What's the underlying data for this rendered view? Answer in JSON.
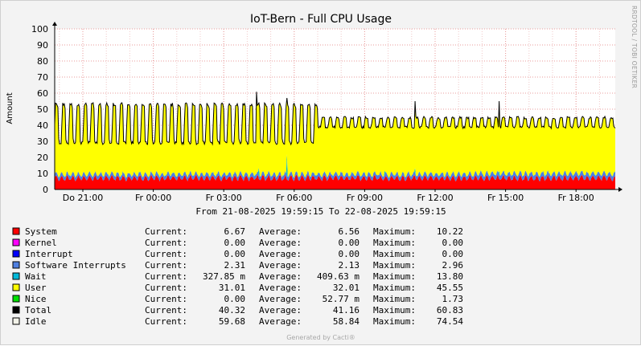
{
  "chart_data": {
    "type": "area",
    "title": "IoT-Bern - Full CPU Usage",
    "ylabel": "Amount",
    "watermark": "RRDTOOL / TOBI OETIKER",
    "ylim": [
      0,
      100
    ],
    "yticks": [
      0,
      10,
      20,
      30,
      40,
      50,
      60,
      70,
      80,
      90,
      100
    ],
    "xticks": [
      "Do 21:00",
      "Fr 00:00",
      "Fr 03:00",
      "Fr 06:00",
      "Fr 09:00",
      "Fr 12:00",
      "Fr 15:00",
      "Fr 18:00"
    ],
    "range_text": "From 21-08-2025 19:59:15 To 22-08-2025 19:59:15",
    "footer": "Generated by Cacti®",
    "stacked": true,
    "grid": true,
    "legend_position": "bottom",
    "stats_labels": {
      "current": "Current:",
      "average": "Average:",
      "maximum": "Maximum:"
    },
    "series": [
      {
        "name": "System",
        "color": "#ff0000",
        "current": "6.67",
        "average": "6.56",
        "maximum": "10.22"
      },
      {
        "name": "Kernel",
        "color": "#ff00ff",
        "current": "0.00",
        "average": "0.00",
        "maximum": "0.00"
      },
      {
        "name": "Interrupt",
        "color": "#0000ff",
        "current": "0.00",
        "average": "0.00",
        "maximum": "0.00"
      },
      {
        "name": "Software Interrupts",
        "color": "#4f7fe0",
        "current": "2.31",
        "average": "2.13",
        "maximum": "2.96"
      },
      {
        "name": "Wait",
        "color": "#00b8d8",
        "current": "327.85 m",
        "average": "409.63 m",
        "maximum": "13.80"
      },
      {
        "name": "User",
        "color": "#ffff00",
        "current": "31.01",
        "average": "32.01",
        "maximum": "45.55"
      },
      {
        "name": "Nice",
        "color": "#00e000",
        "current": "0.00",
        "average": "52.77 m",
        "maximum": "1.73"
      },
      {
        "name": "Total",
        "color": "#000000",
        "current": "40.32",
        "average": "41.16",
        "maximum": "60.83"
      },
      {
        "name": "Idle",
        "color": "#f2f2e8",
        "current": "59.68",
        "average": "58.84",
        "maximum": "74.54"
      }
    ]
  }
}
